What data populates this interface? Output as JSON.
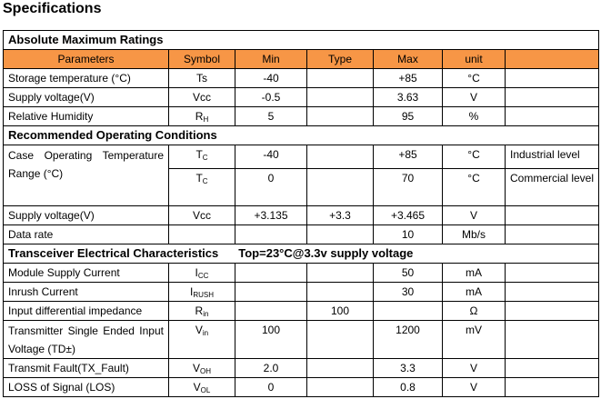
{
  "title": "Specifications",
  "colors": {
    "header_bg": "#f79646"
  },
  "sections": {
    "absolute": "Absolute Maximum Ratings",
    "recommended": "Recommended Operating Conditions",
    "transceiver": "Transceiver Electrical Characteristics",
    "transceiver_note": "Top=23°C@3.3v supply voltage"
  },
  "headers": [
    "Parameters",
    "Symbol",
    "Min",
    "Type",
    "Max",
    "unit",
    ""
  ],
  "absolute_rows": [
    {
      "param": "Storage temperature (°C)",
      "sym": "Ts",
      "sub": "",
      "min": "-40",
      "type": "",
      "max": "+85",
      "unit": "°C",
      "note": ""
    },
    {
      "param": "Supply voltage(V)",
      "sym": "Vcc",
      "sub": "",
      "min": "-0.5",
      "type": "",
      "max": "3.63",
      "unit": "V",
      "note": ""
    },
    {
      "param": "Relative Humidity",
      "sym": "R",
      "sub": "H",
      "min": "5",
      "type": "",
      "max": "95",
      "unit": "%",
      "note": ""
    }
  ],
  "recommended_rows": [
    {
      "param": "Case Operating Temperature Range (°C)",
      "sym": "T",
      "sub": "C",
      "min": "-40",
      "type": "",
      "max": "+85",
      "unit": "°C",
      "note": "Industrial level"
    },
    {
      "param": "",
      "sym": "T",
      "sub": "C",
      "min": "0",
      "type": "",
      "max": "70",
      "unit": "°C",
      "note": "Commercial level"
    },
    {
      "param": "Supply voltage(V)",
      "sym": "Vcc",
      "sub": "",
      "min": "+3.135",
      "type": "+3.3",
      "max": "+3.465",
      "unit": "V",
      "note": ""
    },
    {
      "param": "Data rate",
      "sym": "",
      "sub": "",
      "min": "",
      "type": "",
      "max": "10",
      "unit": "Mb/s",
      "note": ""
    }
  ],
  "transceiver_rows": [
    {
      "param": "Module Supply Current",
      "sym": "I",
      "sub": "CC",
      "min": "",
      "type": "",
      "max": "50",
      "unit": "mA",
      "note": ""
    },
    {
      "param": "Inrush Current",
      "sym": "I",
      "sub": "RUSH",
      "min": "",
      "type": "",
      "max": "30",
      "unit": "mA",
      "note": ""
    },
    {
      "param": "Input differential impedance",
      "sym": "R",
      "sub": "in",
      "min": "",
      "type": "100",
      "max": "",
      "unit": "Ω",
      "note": ""
    },
    {
      "param": "Transmitter Single Ended Input Voltage (TD±)",
      "sym": "V",
      "sub": "in",
      "min": "100",
      "type": "",
      "max": "1200",
      "unit": "mV",
      "note": ""
    },
    {
      "param": "Transmit Fault(TX_Fault)",
      "sym": "V",
      "sub": "OH",
      "min": "2.0",
      "type": "",
      "max": "3.3",
      "unit": "V",
      "note": ""
    },
    {
      "param": "LOSS of Signal (LOS)",
      "sym": "V",
      "sub": "OL",
      "min": "0",
      "type": "",
      "max": "0.8",
      "unit": "V",
      "note": ""
    }
  ]
}
